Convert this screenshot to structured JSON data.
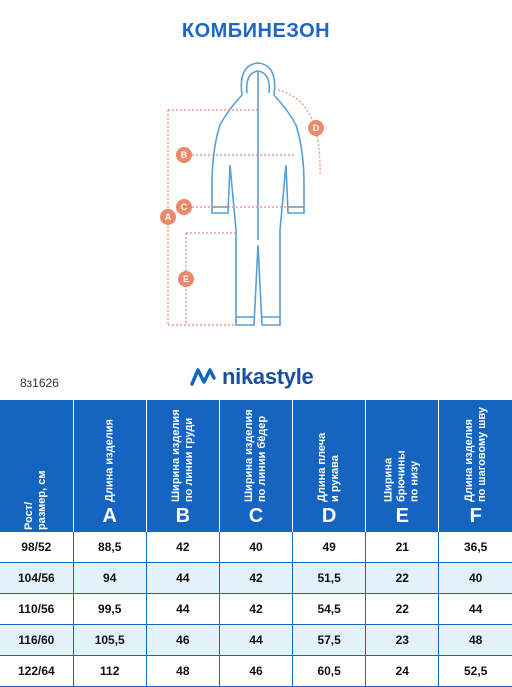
{
  "title": "КОМБИНЕЗОН",
  "article": "8з1626",
  "brand": "nikastyle",
  "diagram_labels": [
    "A",
    "B",
    "C",
    "D",
    "E"
  ],
  "columns": [
    {
      "header": "Рост/\nразмер, см",
      "letter": ""
    },
    {
      "header": "Длина изделия",
      "letter": "A"
    },
    {
      "header": "Ширина изделия\nпо линии груди",
      "letter": "B"
    },
    {
      "header": "Ширина изделия\nпо линии бёдер",
      "letter": "C"
    },
    {
      "header": "Длина плеча\nи рукава",
      "letter": "D"
    },
    {
      "header": "Ширина брючины\nпо низу",
      "letter": "E"
    },
    {
      "header": "Длина изделия\nпо шаговому шву",
      "letter": "F"
    }
  ],
  "rows": [
    [
      "98/52",
      "88,5",
      "42",
      "40",
      "49",
      "21",
      "36,5"
    ],
    [
      "104/56",
      "94",
      "44",
      "42",
      "51,5",
      "22",
      "40"
    ],
    [
      "110/56",
      "99,5",
      "44",
      "42",
      "54,5",
      "22",
      "44"
    ],
    [
      "116/60",
      "105,5",
      "46",
      "44",
      "57,5",
      "23",
      "48"
    ],
    [
      "122/64",
      "112",
      "48",
      "46",
      "60,5",
      "24",
      "52,5"
    ]
  ],
  "colors": {
    "accent": "#1565c0",
    "measure": "#e8896a",
    "stripe": "#e3f1fb"
  }
}
